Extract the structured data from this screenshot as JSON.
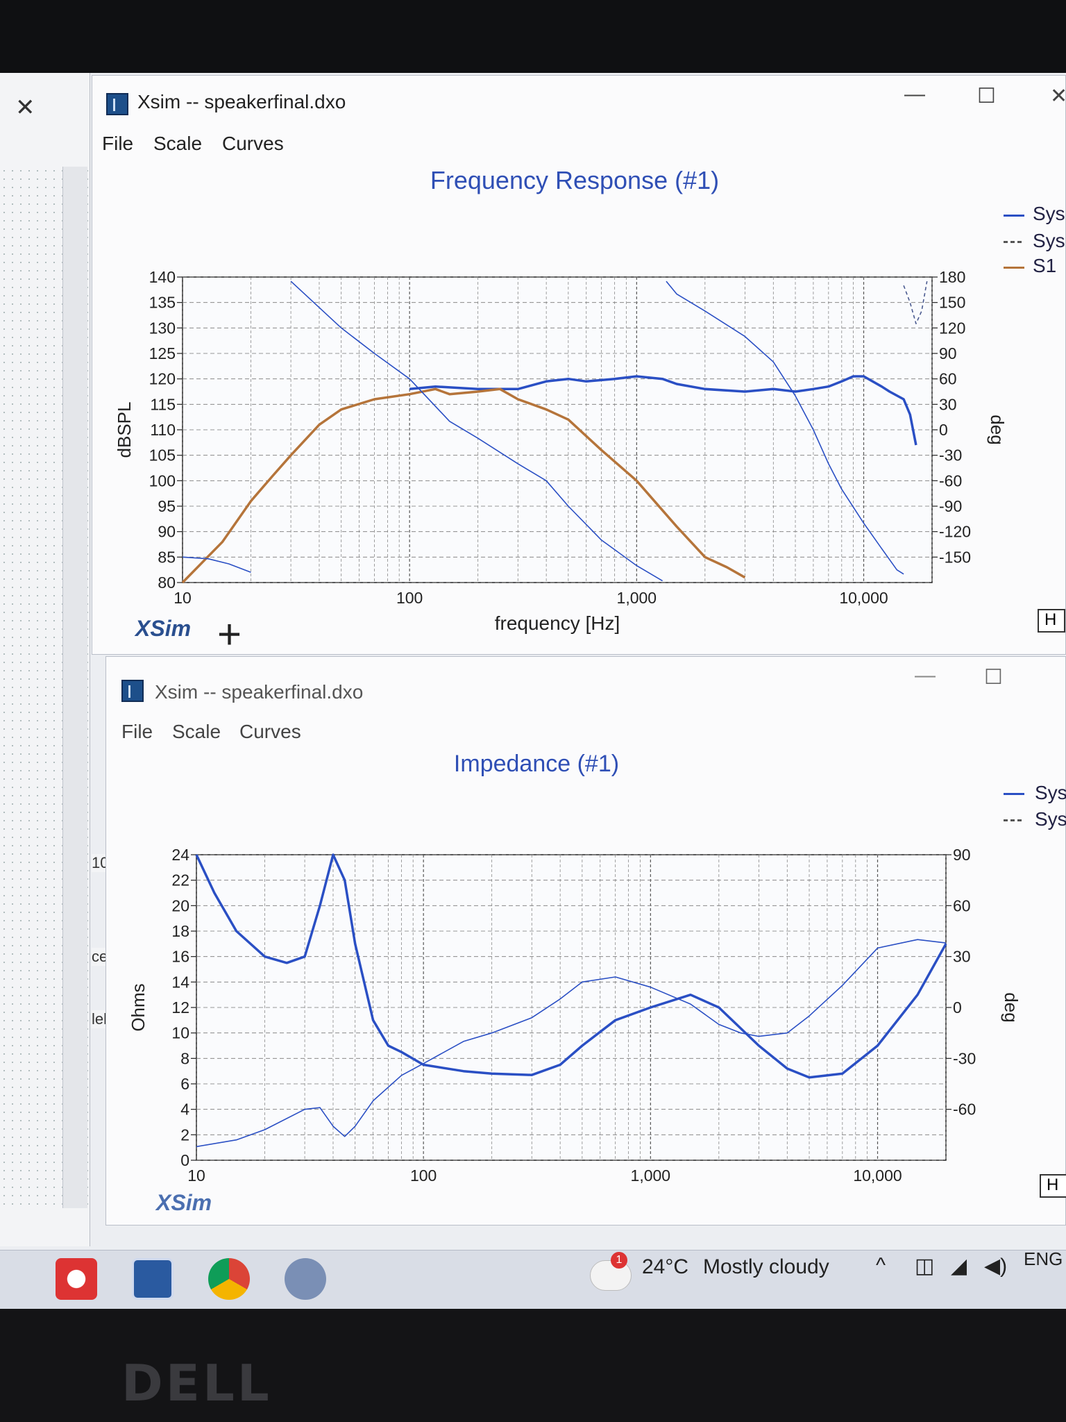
{
  "left_panel": {
    "labels": [
      "10",
      "ce",
      "lel"
    ]
  },
  "window1": {
    "title": "Xsim -- speakerfinal.dxo",
    "menu": [
      "File",
      "Scale",
      "Curves"
    ],
    "logo": "XSim",
    "side_button": "H",
    "legend": [
      "Sys",
      "Sys",
      "S1"
    ]
  },
  "window2": {
    "title": "Xsim -- speakerfinal.dxo",
    "menu": [
      "File",
      "Scale",
      "Curves"
    ],
    "logo": "XSim",
    "side_button": "H",
    "legend": [
      "Sys",
      "Sys"
    ]
  },
  "taskbar": {
    "weather_temp": "24°C",
    "weather_desc": "Mostly cloudy",
    "weather_badge": "1",
    "language": "ENG"
  },
  "colors": {
    "system_response": "#2a4fc4",
    "s1_response": "#b5743a",
    "title_blue": "#2f4fb5"
  },
  "chart_data": [
    {
      "type": "line",
      "title": "Frequency Response (#1)",
      "xlabel": "frequency [Hz]",
      "ylabel": "dBSPL",
      "y2label": "deg",
      "xscale": "log",
      "xlim": [
        10,
        20000
      ],
      "ylim": [
        80,
        140
      ],
      "y2lim": [
        -180,
        180
      ],
      "x_ticks": [
        "10",
        "100",
        "1,000",
        "10,000"
      ],
      "y_ticks": [
        140,
        135,
        130,
        125,
        120,
        115,
        110,
        105,
        100,
        95,
        90,
        85,
        80
      ],
      "y2_ticks": [
        180,
        150,
        120,
        90,
        60,
        30,
        0,
        -30,
        -60,
        -90,
        -120,
        -150
      ],
      "series": [
        {
          "name": "Sys",
          "axis": "left",
          "style": "solid-thick",
          "x": [
            100,
            130,
            200,
            300,
            400,
            500,
            600,
            800,
            1000,
            1300,
            1500,
            2000,
            3000,
            4000,
            5000,
            6000,
            7000,
            8000,
            9000,
            10000,
            12000,
            13000,
            15000,
            16000,
            17000
          ],
          "y": [
            118,
            118.5,
            118,
            118,
            119.5,
            120,
            119.5,
            120,
            120.5,
            120,
            119,
            118,
            117.5,
            118,
            117.5,
            118,
            118.5,
            119.5,
            120.5,
            120.5,
            118.5,
            117.5,
            116,
            113,
            107
          ]
        },
        {
          "name": "S1",
          "axis": "left",
          "style": "solid-thick",
          "x": [
            10,
            15,
            20,
            25,
            30,
            40,
            50,
            70,
            100,
            130,
            150,
            200,
            250,
            300,
            400,
            500,
            700,
            1000,
            1500,
            2000,
            2500,
            3000
          ],
          "y": [
            80,
            88,
            96,
            101,
            105,
            111,
            114,
            116,
            117,
            118,
            117,
            117.5,
            118,
            116,
            114,
            112,
            106,
            100,
            91,
            85,
            83,
            81
          ]
        },
        {
          "name": "Sys",
          "axis": "right",
          "style": "solid-thin",
          "x": [
            10,
            13,
            16,
            20,
            30,
            50,
            70,
            100,
            150,
            200,
            300,
            400,
            500,
            700,
            1000,
            1300,
            1350,
            1500,
            2000,
            3000,
            4000,
            5000,
            6000,
            7000,
            8000,
            10000,
            12000,
            14000,
            15000
          ],
          "y": [
            -150,
            -152,
            -158,
            -168,
            175,
            120,
            90,
            60,
            10,
            -10,
            -40,
            -60,
            -90,
            -130,
            -160,
            -178,
            175,
            160,
            140,
            110,
            80,
            40,
            0,
            -40,
            -70,
            -110,
            -140,
            -165,
            -170
          ]
        },
        {
          "name": "Sys",
          "axis": "right",
          "style": "dashed",
          "x": [
            15000,
            16000,
            17000,
            18000,
            19000
          ],
          "y": [
            170,
            150,
            125,
            140,
            175
          ]
        }
      ]
    },
    {
      "type": "line",
      "title": "Impedance (#1)",
      "xlabel": "frequency [Hz]",
      "ylabel": "Ohms",
      "y2label": "deg",
      "xscale": "log",
      "xlim": [
        10,
        20000
      ],
      "ylim": [
        0,
        24
      ],
      "y2lim": [
        -90,
        90
      ],
      "x_ticks": [
        "10",
        "100",
        "1,000",
        "10,000"
      ],
      "y_ticks": [
        24,
        22,
        20,
        18,
        16,
        14,
        12,
        10,
        8,
        6,
        4,
        2,
        0
      ],
      "y2_ticks": [
        90,
        60,
        30,
        0,
        -30,
        -60
      ],
      "series": [
        {
          "name": "Sys",
          "axis": "left",
          "style": "solid-thick",
          "x": [
            10,
            12,
            15,
            20,
            25,
            30,
            35,
            40,
            45,
            50,
            60,
            70,
            80,
            100,
            150,
            200,
            300,
            400,
            500,
            700,
            1000,
            1500,
            2000,
            3000,
            4000,
            5000,
            7000,
            10000,
            15000,
            20000
          ],
          "y": [
            24,
            21,
            18,
            16,
            15.5,
            16,
            20,
            24,
            22,
            17,
            11,
            9,
            8.5,
            7.5,
            7,
            6.8,
            6.7,
            7.5,
            9,
            11,
            12,
            13,
            12,
            9,
            7.2,
            6.5,
            6.8,
            9,
            13,
            17
          ]
        },
        {
          "name": "Sys",
          "axis": "right",
          "style": "solid-thin",
          "x": [
            10,
            15,
            20,
            30,
            35,
            40,
            45,
            50,
            60,
            80,
            100,
            150,
            200,
            300,
            400,
            500,
            700,
            1000,
            1500,
            2000,
            2500,
            3000,
            4000,
            5000,
            7000,
            10000,
            15000,
            20000
          ],
          "y": [
            -82,
            -78,
            -72,
            -60,
            -59,
            -70,
            -76,
            -70,
            -55,
            -40,
            -33,
            -20,
            -15,
            -6,
            5,
            15,
            18,
            12,
            2,
            -10,
            -15,
            -17,
            -15,
            -5,
            13,
            35,
            40,
            38
          ]
        }
      ]
    }
  ]
}
